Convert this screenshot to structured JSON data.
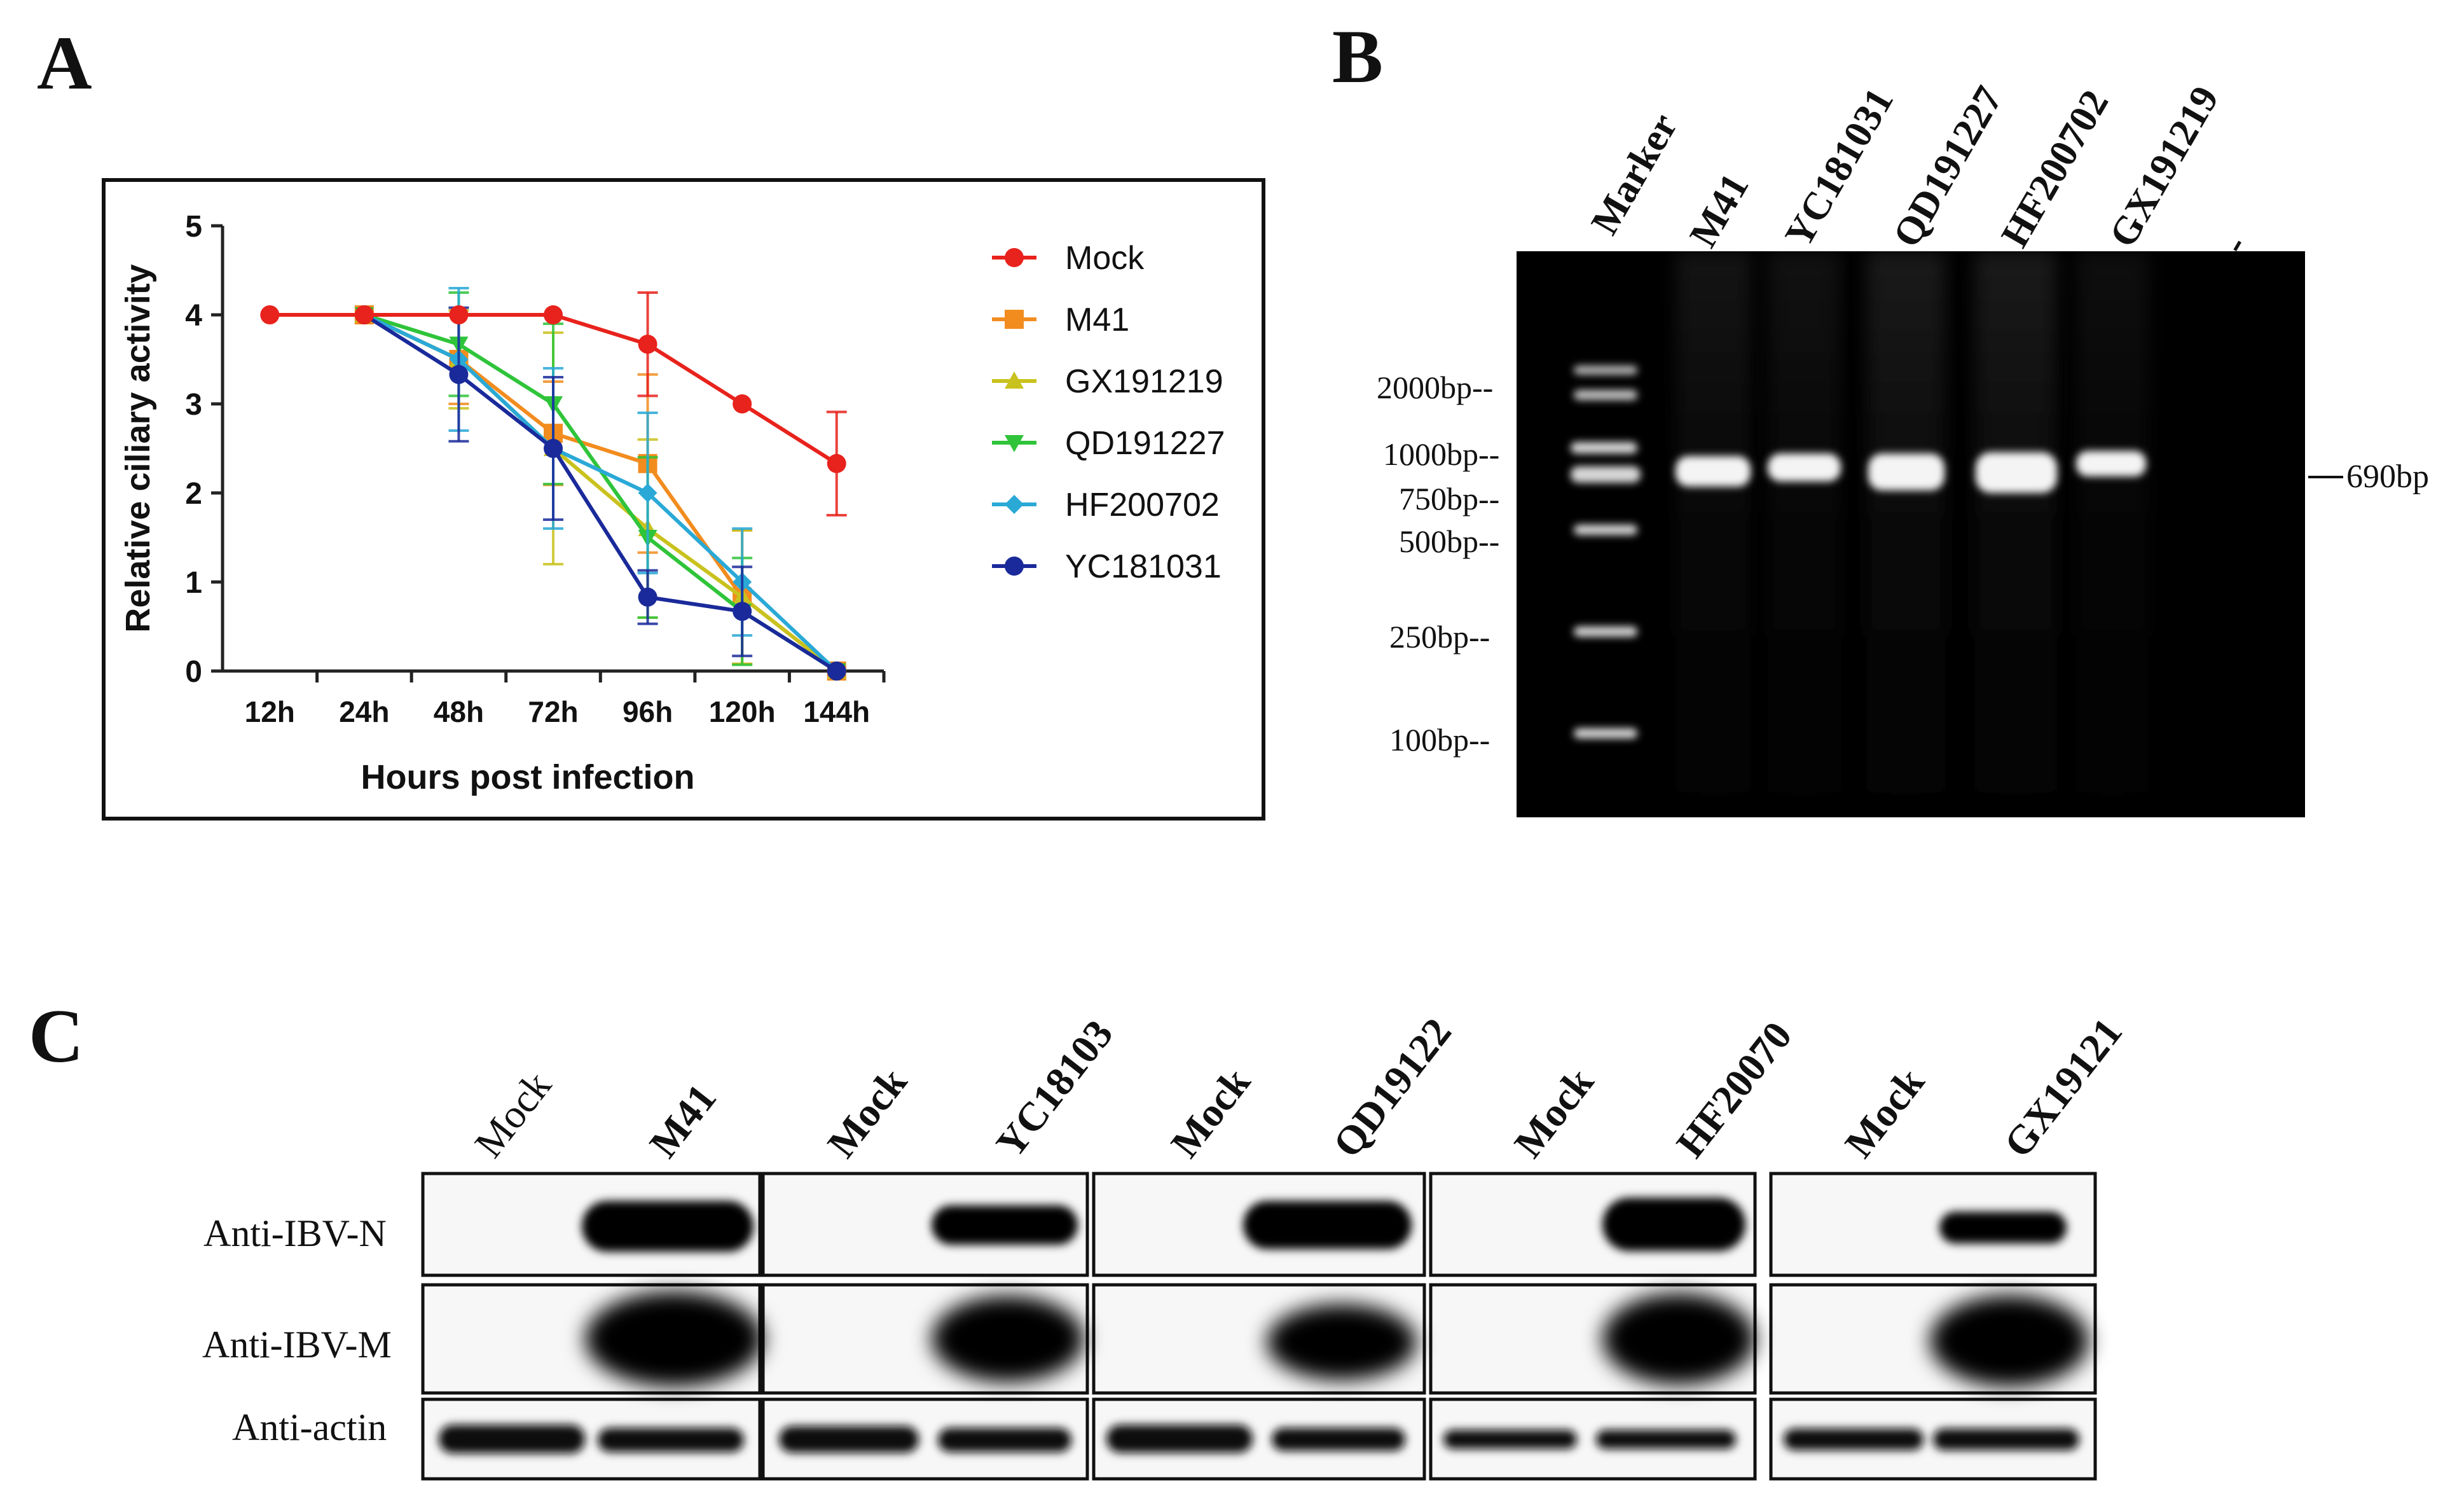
{
  "panels": {
    "a": "A",
    "b": "B",
    "c": "C"
  },
  "chart_data": {
    "type": "line",
    "categories": [
      "12h",
      "24h",
      "48h",
      "72h",
      "96h",
      "120h",
      "144h"
    ],
    "xlabel": "Hours post infection",
    "ylabel": "Relative ciliary activity",
    "ylim": [
      0,
      5
    ],
    "yticks": [
      0,
      1,
      2,
      3,
      4,
      5
    ],
    "legend_position": "right",
    "grid": false,
    "series": [
      {
        "name": "Mock",
        "color": "#e8221c",
        "marker": "circle",
        "values": [
          4,
          4,
          4,
          4,
          3.67,
          3,
          2.33
        ],
        "err": [
          0,
          0,
          0,
          0,
          0.58,
          0,
          0.58
        ]
      },
      {
        "name": "M41",
        "color": "#f28c1e",
        "marker": "square",
        "values": [
          null,
          4,
          3.5,
          2.67,
          2.33,
          0.83,
          0
        ],
        "err": [
          0,
          0,
          0.5,
          0.58,
          1.0,
          0.75,
          0
        ]
      },
      {
        "name": "GX191219",
        "color": "#c9c21e",
        "marker": "triangle-up",
        "values": [
          null,
          4,
          3.5,
          2.5,
          1.6,
          0.83,
          0
        ],
        "err": [
          0,
          0,
          0.55,
          1.3,
          1.0,
          0.75,
          0
        ]
      },
      {
        "name": "QD191227",
        "color": "#2fc43a",
        "marker": "triangle-down",
        "values": [
          null,
          4,
          3.67,
          3.0,
          1.5,
          0.67,
          0
        ],
        "err": [
          0,
          0,
          0.58,
          0.9,
          0.9,
          0.6,
          0
        ]
      },
      {
        "name": "HF200702",
        "color": "#2aa9d6",
        "marker": "diamond",
        "values": [
          null,
          4,
          3.5,
          2.5,
          2.0,
          1.0,
          0
        ],
        "err": [
          0,
          0,
          0.8,
          0.9,
          0.9,
          0.6,
          0
        ]
      },
      {
        "name": "YC181031",
        "color": "#1a2a9a",
        "marker": "circle",
        "values": [
          null,
          4,
          3.33,
          2.5,
          0.83,
          0.67,
          0
        ],
        "err": [
          0,
          0,
          0.75,
          0.8,
          0.3,
          0.5,
          0
        ]
      }
    ]
  },
  "gel": {
    "lanes": [
      "Marker",
      "M41",
      "YC181031",
      "QD191227",
      "HF200702",
      "GX191219",
      "-"
    ],
    "sizes": [
      "2000bp--",
      "1000bp--",
      "750bp--",
      "500bp--",
      "250bp--",
      "100bp--"
    ],
    "product": "690bp"
  },
  "western": {
    "groups": [
      {
        "mock": "Mock",
        "strain": "M41"
      },
      {
        "mock": "Mock",
        "strain": "YC18103"
      },
      {
        "mock": "Mock",
        "strain": "QD19122"
      },
      {
        "mock": "Mock",
        "strain": "HF20070"
      },
      {
        "mock": "Mock",
        "strain": "GX19121"
      }
    ],
    "rows": [
      "Anti-IBV-N",
      "Anti-IBV-M",
      "Anti-actin"
    ]
  }
}
